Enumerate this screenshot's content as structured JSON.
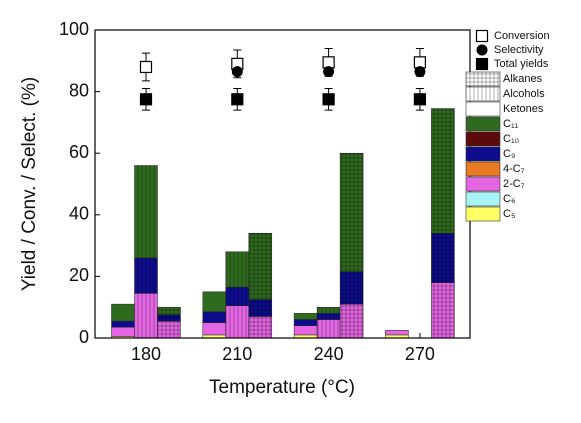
{
  "chart_data": {
    "type": "bar",
    "x_label": "Temperature (°C)",
    "y_label": "Yield / Conv. / Select. (%)",
    "categories": [
      "180",
      "210",
      "240",
      "270"
    ],
    "ylim": [
      0,
      100
    ],
    "yticks": [
      0,
      20,
      40,
      60,
      80,
      100
    ],
    "bar_types": [
      {
        "name": "Ketones",
        "pattern": "none"
      },
      {
        "name": "Alcohols",
        "pattern": "vertical"
      },
      {
        "name": "Alkanes",
        "pattern": "grid"
      }
    ],
    "series": [
      {
        "name": "C₅",
        "color": "#ffff66",
        "values": [
          [
            0.5,
            0,
            0
          ],
          [
            1,
            0,
            0
          ],
          [
            1,
            0,
            0
          ],
          [
            1,
            0,
            0
          ]
        ]
      },
      {
        "name": "C₆",
        "color": "#a8f4f4",
        "values": [
          [
            0,
            0,
            0
          ],
          [
            0,
            0,
            0
          ],
          [
            0,
            0,
            0
          ],
          [
            0,
            0,
            0
          ]
        ]
      },
      {
        "name": "2-C₇",
        "color": "#e466e4",
        "values": [
          [
            3,
            14.5,
            5.5
          ],
          [
            4,
            10.5,
            7
          ],
          [
            3,
            6,
            11
          ],
          [
            1.5,
            0,
            18
          ]
        ]
      },
      {
        "name": "4-C₇",
        "color": "#e87a24",
        "values": [
          [
            0,
            0,
            0
          ],
          [
            0,
            0,
            0
          ],
          [
            0,
            0,
            0
          ],
          [
            0,
            0,
            0
          ]
        ]
      },
      {
        "name": "C₉",
        "color": "#0c0c8c",
        "values": [
          [
            2,
            11.5,
            2
          ],
          [
            3.5,
            6,
            5.5
          ],
          [
            2,
            2,
            10.5
          ],
          [
            0,
            0,
            16
          ]
        ]
      },
      {
        "name": "C₁₀",
        "color": "#5c0a0a",
        "values": [
          [
            0,
            0,
            0
          ],
          [
            0,
            0,
            0
          ],
          [
            0,
            0,
            0
          ],
          [
            0,
            0,
            0
          ]
        ]
      },
      {
        "name": "C₁₁",
        "color": "#2f6b1f",
        "values": [
          [
            5.5,
            30,
            2.5
          ],
          [
            6.5,
            11.5,
            21.5
          ],
          [
            2,
            2,
            38.5
          ],
          [
            0,
            0,
            40.5
          ]
        ]
      }
    ],
    "points": [
      {
        "name": "Conversion",
        "marker": "open-square",
        "values": [
          88,
          89,
          89.5,
          89.5
        ],
        "errors": [
          4.5,
          4.5,
          4.5,
          4.5
        ]
      },
      {
        "name": "Selectivity",
        "marker": "circle",
        "values": [
          null,
          86.5,
          86.5,
          86.5
        ],
        "errors": [
          null,
          null,
          null,
          null
        ]
      },
      {
        "name": "Total yields",
        "marker": "square",
        "values": [
          77.5,
          77.5,
          77.5,
          77.5
        ],
        "errors": [
          3.5,
          3.5,
          3.5,
          3.5
        ]
      }
    ]
  }
}
